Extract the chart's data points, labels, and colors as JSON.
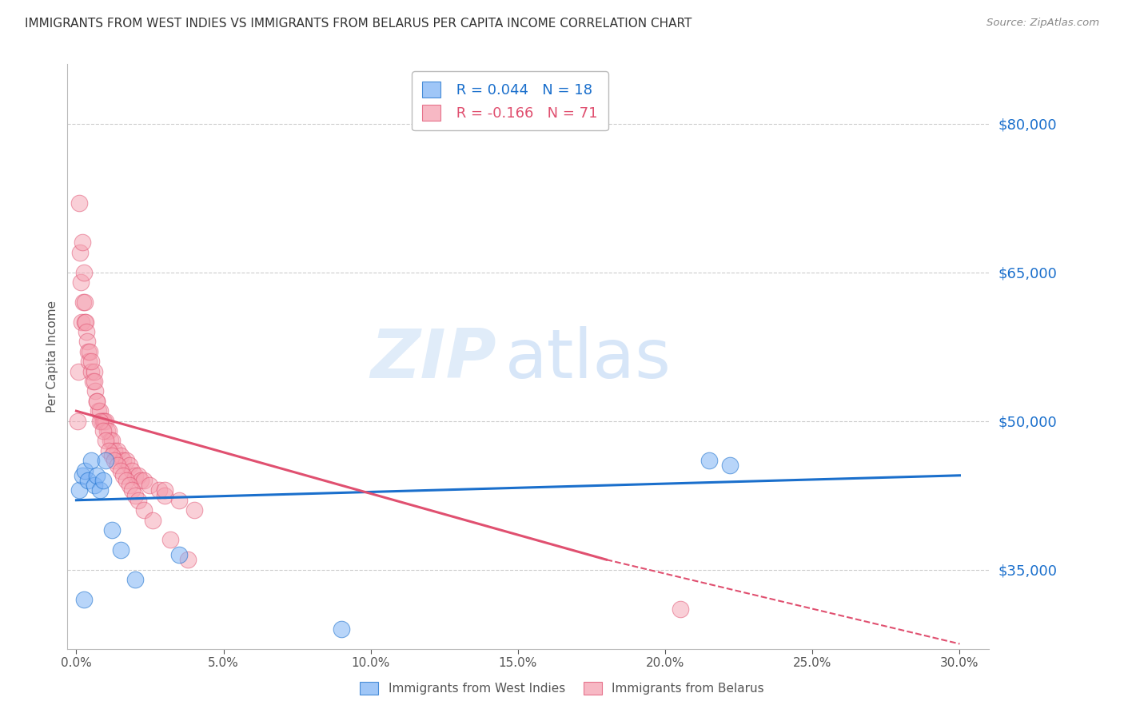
{
  "title": "IMMIGRANTS FROM WEST INDIES VS IMMIGRANTS FROM BELARUS PER CAPITA INCOME CORRELATION CHART",
  "source": "Source: ZipAtlas.com",
  "ylabel": "Per Capita Income",
  "xlabel_ticks": [
    "0.0%",
    "5.0%",
    "10.0%",
    "15.0%",
    "20.0%",
    "25.0%",
    "30.0%"
  ],
  "xlabel_vals": [
    0,
    5,
    10,
    15,
    20,
    25,
    30
  ],
  "yticks": [
    35000,
    50000,
    65000,
    80000
  ],
  "ytick_labels": [
    "$35,000",
    "$50,000",
    "$65,000",
    "$80,000"
  ],
  "ylim": [
    27000,
    86000
  ],
  "xlim": [
    -0.3,
    31.0
  ],
  "watermark_zip": "ZIP",
  "watermark_atlas": "atlas",
  "blue_color": "#7fb3f5",
  "pink_color": "#f5a0b0",
  "blue_label": "Immigrants from West Indies",
  "pink_label": "Immigrants from Belarus",
  "blue_R": 0.044,
  "blue_N": 18,
  "pink_R": -0.166,
  "pink_N": 71,
  "blue_line_color": "#1a6fcc",
  "pink_line_color": "#e05070",
  "grid_color": "#cccccc",
  "title_color": "#333333",
  "axis_label_color": "#555555",
  "blue_scatter_x": [
    0.1,
    0.2,
    0.3,
    0.4,
    0.5,
    0.6,
    0.7,
    0.8,
    0.9,
    1.0,
    1.5,
    2.0,
    3.5,
    9.0,
    21.5,
    22.2,
    0.25,
    1.2
  ],
  "blue_scatter_y": [
    43000,
    44500,
    45000,
    44000,
    46000,
    43500,
    44500,
    43000,
    44000,
    46000,
    37000,
    34000,
    36500,
    29000,
    46000,
    45500,
    32000,
    39000
  ],
  "pink_scatter_x": [
    0.05,
    0.08,
    0.1,
    0.12,
    0.15,
    0.18,
    0.2,
    0.22,
    0.25,
    0.28,
    0.3,
    0.32,
    0.35,
    0.38,
    0.4,
    0.42,
    0.45,
    0.5,
    0.55,
    0.6,
    0.65,
    0.7,
    0.75,
    0.8,
    0.85,
    0.9,
    0.95,
    1.0,
    1.05,
    1.1,
    1.15,
    1.2,
    1.3,
    1.4,
    1.5,
    1.6,
    1.7,
    1.8,
    1.9,
    2.0,
    2.1,
    2.2,
    2.3,
    2.5,
    2.8,
    3.0,
    3.5,
    4.0,
    0.5,
    0.6,
    0.7,
    0.8,
    0.9,
    1.0,
    1.1,
    1.2,
    1.3,
    1.4,
    1.5,
    1.6,
    1.7,
    1.8,
    1.9,
    2.0,
    2.1,
    2.3,
    2.6,
    3.2,
    3.8,
    20.5,
    3.0
  ],
  "pink_scatter_y": [
    50000,
    55000,
    72000,
    67000,
    64000,
    60000,
    68000,
    62000,
    65000,
    62000,
    60000,
    60000,
    59000,
    58000,
    57000,
    56000,
    57000,
    55000,
    54000,
    55000,
    53000,
    52000,
    51000,
    51000,
    50000,
    50000,
    50000,
    50000,
    49000,
    49000,
    48000,
    48000,
    47000,
    47000,
    46500,
    46000,
    46000,
    45500,
    45000,
    44500,
    44500,
    44000,
    44000,
    43500,
    43000,
    42500,
    42000,
    41000,
    56000,
    54000,
    52000,
    50000,
    49000,
    48000,
    47000,
    46500,
    46000,
    45500,
    45000,
    44500,
    44000,
    43500,
    43000,
    42500,
    42000,
    41000,
    40000,
    38000,
    36000,
    31000,
    43000
  ],
  "blue_line_x0": 0,
  "blue_line_x1": 30,
  "blue_line_y0": 42000,
  "blue_line_y1": 44500,
  "pink_solid_x0": 0,
  "pink_solid_x1": 18,
  "pink_solid_y0": 51000,
  "pink_solid_y1": 36000,
  "pink_dash_x0": 18,
  "pink_dash_x1": 30,
  "pink_dash_y0": 36000,
  "pink_dash_y1": 27500
}
